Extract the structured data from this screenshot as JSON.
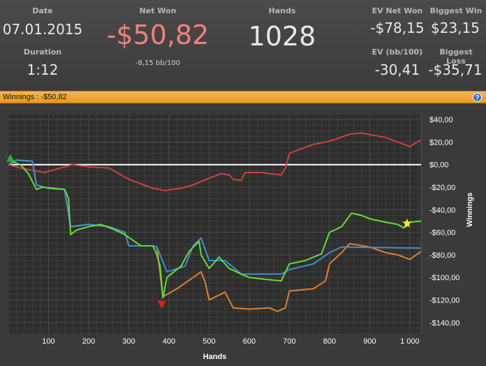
{
  "stats": {
    "date_label": "Date",
    "date_value": "07.01.2015",
    "duration_label": "Duration",
    "duration_value": "1:12",
    "net_won_label": "Net Won",
    "net_won_value": "-$50,82",
    "net_won_sub": "-8,15 bb/100",
    "hands_label": "Hands",
    "hands_value": "1028",
    "ev_net_won_label": "EV Net Won",
    "ev_net_won_value": "-$78,15",
    "ev_bb_label": "EV (bb/100)",
    "ev_bb_value": "-30,41",
    "biggest_win_label": "Biggest Win",
    "biggest_win_value": "$23,15",
    "biggest_loss_label": "Biggest Loss",
    "biggest_loss_value": "-$35,71"
  },
  "infobar": {
    "text": "Winnings : -$50,82",
    "help_icon": "help-icon"
  },
  "colors": {
    "green": "#66dd33",
    "blue": "#3d8fd6",
    "orange": "#e0822c",
    "red": "#d04040",
    "net_won": "#f08080",
    "bar": "#f0a030"
  },
  "chart_data": {
    "type": "line",
    "xlabel": "Hands",
    "ylabel": "Winnings",
    "xlim": [
      0,
      1028
    ],
    "ylim": [
      -150,
      45
    ],
    "x_ticks": [
      100,
      200,
      300,
      400,
      500,
      600,
      700,
      800,
      900,
      1000
    ],
    "x_tick_labels": [
      "100",
      "200",
      "300",
      "400",
      "500",
      "600",
      "700",
      "800",
      "900",
      "1 000"
    ],
    "y_ticks": [
      40,
      20,
      0,
      -20,
      -40,
      -60,
      -80,
      -100,
      -120,
      -140
    ],
    "y_tick_labels": [
      "$40,00",
      "$20,00",
      "$0,00",
      "-$20,00",
      "-$40,00",
      "-$60,00",
      "-$80,00",
      "-$100,00",
      "-$120,00",
      "-$140,00"
    ],
    "grid": true,
    "series": [
      {
        "color": "#66dd33",
        "points": [
          [
            0,
            4
          ],
          [
            30,
            0
          ],
          [
            50,
            -8
          ],
          [
            70,
            -22
          ],
          [
            85,
            -20
          ],
          [
            140,
            -22
          ],
          [
            150,
            -30
          ],
          [
            155,
            -62
          ],
          [
            170,
            -58
          ],
          [
            200,
            -55
          ],
          [
            230,
            -53
          ],
          [
            260,
            -57
          ],
          [
            290,
            -62
          ],
          [
            310,
            -67
          ],
          [
            330,
            -72
          ],
          [
            360,
            -72
          ],
          [
            370,
            -80
          ],
          [
            378,
            -90
          ],
          [
            385,
            -118
          ],
          [
            395,
            -100
          ],
          [
            430,
            -90
          ],
          [
            450,
            -77
          ],
          [
            475,
            -68
          ],
          [
            480,
            -80
          ],
          [
            500,
            -92
          ],
          [
            525,
            -82
          ],
          [
            550,
            -92
          ],
          [
            580,
            -97
          ],
          [
            600,
            -100
          ],
          [
            650,
            -102
          ],
          [
            680,
            -103
          ],
          [
            700,
            -88
          ],
          [
            740,
            -85
          ],
          [
            780,
            -79
          ],
          [
            800,
            -60
          ],
          [
            830,
            -55
          ],
          [
            855,
            -43
          ],
          [
            880,
            -45
          ],
          [
            900,
            -48
          ],
          [
            940,
            -51
          ],
          [
            970,
            -53
          ],
          [
            985,
            -56
          ],
          [
            995,
            -54
          ],
          [
            1000,
            -51
          ],
          [
            1028,
            -50
          ]
        ]
      },
      {
        "color": "#3d8fd6",
        "points": [
          [
            0,
            0
          ],
          [
            20,
            4
          ],
          [
            60,
            3
          ],
          [
            70,
            -18
          ],
          [
            100,
            -21
          ],
          [
            140,
            -22
          ],
          [
            155,
            -55
          ],
          [
            200,
            -53
          ],
          [
            250,
            -55
          ],
          [
            290,
            -60
          ],
          [
            300,
            -72
          ],
          [
            360,
            -72
          ],
          [
            370,
            -73
          ],
          [
            395,
            -95
          ],
          [
            440,
            -90
          ],
          [
            460,
            -72
          ],
          [
            480,
            -65
          ],
          [
            500,
            -85
          ],
          [
            540,
            -85
          ],
          [
            580,
            -97
          ],
          [
            680,
            -97
          ],
          [
            700,
            -93
          ],
          [
            760,
            -88
          ],
          [
            800,
            -78
          ],
          [
            830,
            -73
          ],
          [
            1028,
            -74
          ]
        ]
      },
      {
        "color": "#e0822c",
        "points": [
          [
            0,
            0
          ],
          [
            20,
            4
          ],
          [
            60,
            3
          ],
          [
            70,
            -18
          ],
          [
            100,
            -21
          ],
          [
            140,
            -22
          ],
          [
            155,
            -55
          ],
          [
            200,
            -53
          ],
          [
            250,
            -55
          ],
          [
            290,
            -60
          ],
          [
            300,
            -72
          ],
          [
            360,
            -72
          ],
          [
            370,
            -73
          ],
          [
            385,
            -117
          ],
          [
            420,
            -110
          ],
          [
            460,
            -100
          ],
          [
            480,
            -95
          ],
          [
            490,
            -104
          ],
          [
            500,
            -120
          ],
          [
            540,
            -113
          ],
          [
            560,
            -127
          ],
          [
            600,
            -128
          ],
          [
            650,
            -127
          ],
          [
            670,
            -130
          ],
          [
            690,
            -127
          ],
          [
            700,
            -112
          ],
          [
            760,
            -110
          ],
          [
            790,
            -103
          ],
          [
            800,
            -88
          ],
          [
            830,
            -78
          ],
          [
            850,
            -70
          ],
          [
            900,
            -73
          ],
          [
            940,
            -78
          ],
          [
            970,
            -80
          ],
          [
            1000,
            -84
          ],
          [
            1028,
            -77
          ]
        ]
      },
      {
        "color": "#d04040",
        "points": [
          [
            0,
            0
          ],
          [
            30,
            -3
          ],
          [
            60,
            -5
          ],
          [
            90,
            -7
          ],
          [
            130,
            -3
          ],
          [
            160,
            0
          ],
          [
            200,
            -2
          ],
          [
            250,
            -3
          ],
          [
            270,
            -7
          ],
          [
            300,
            -13
          ],
          [
            330,
            -17
          ],
          [
            360,
            -21
          ],
          [
            390,
            -23
          ],
          [
            430,
            -21
          ],
          [
            460,
            -18
          ],
          [
            500,
            -12
          ],
          [
            530,
            -8
          ],
          [
            550,
            -9
          ],
          [
            560,
            -13
          ],
          [
            580,
            -14
          ],
          [
            590,
            -7
          ],
          [
            630,
            -7
          ],
          [
            650,
            -8
          ],
          [
            680,
            -9
          ],
          [
            690,
            -3
          ],
          [
            700,
            10
          ],
          [
            760,
            18
          ],
          [
            790,
            20
          ],
          [
            820,
            23
          ],
          [
            850,
            27
          ],
          [
            880,
            28
          ],
          [
            910,
            26
          ],
          [
            940,
            24
          ],
          [
            970,
            20
          ],
          [
            1000,
            16
          ],
          [
            1028,
            22
          ]
        ]
      }
    ],
    "baseline": 0,
    "markers": [
      {
        "type": "up-triangle",
        "color": "#30b030",
        "x": 5,
        "y": 5
      },
      {
        "type": "down-triangle",
        "color": "#e02020",
        "x": 382,
        "y": -124
      },
      {
        "type": "star",
        "color": "#ffee22",
        "x": 993,
        "y": -52
      }
    ]
  }
}
